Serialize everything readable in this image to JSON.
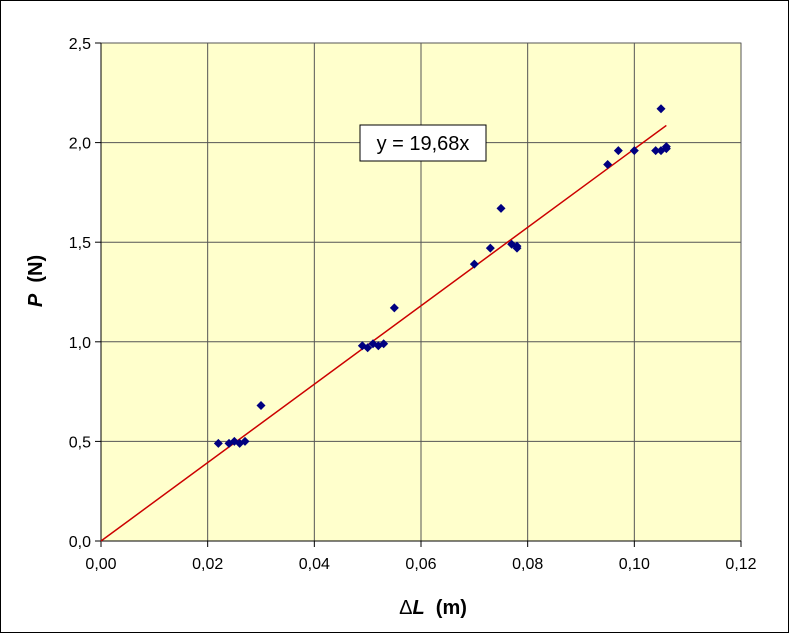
{
  "chart_data": {
    "type": "scatter",
    "xlabel": "ΔL  (m)",
    "xlabel_parts": {
      "delta": "Δ",
      "symbol": "L",
      "unit": "  (m)"
    },
    "ylabel": "P  (N)",
    "ylabel_parts": {
      "symbol": "P",
      "unit": "  (N)"
    },
    "xlim": [
      0,
      0.12
    ],
    "ylim": [
      0,
      2.5
    ],
    "x_ticks": [
      "0,00",
      "0,02",
      "0,04",
      "0,06",
      "0,08",
      "0,10",
      "0,12"
    ],
    "y_ticks": [
      "0,0",
      "0,5",
      "1,0",
      "1,5",
      "2,0",
      "2,5"
    ],
    "grid": true,
    "plot_background": "#ffffcc",
    "gridline_color": "#555555",
    "marker_color": "#000080",
    "trendline_color": "#cc0000",
    "trendline": {
      "label": "y = 19,68x",
      "slope": 19.68,
      "intercept": 0,
      "x_range": [
        0,
        0.106
      ]
    },
    "series": [
      {
        "x": [
          0.022,
          0.024,
          0.025,
          0.026,
          0.027,
          0.03,
          0.049,
          0.05,
          0.051,
          0.052,
          0.053,
          0.055,
          0.07,
          0.073,
          0.075,
          0.077,
          0.078,
          0.078,
          0.095,
          0.097,
          0.1,
          0.104,
          0.105,
          0.105,
          0.106,
          0.106
        ],
        "y": [
          0.49,
          0.49,
          0.5,
          0.49,
          0.5,
          0.68,
          0.98,
          0.97,
          0.99,
          0.98,
          0.99,
          1.17,
          1.39,
          1.47,
          1.67,
          1.49,
          1.48,
          1.47,
          1.89,
          1.96,
          1.96,
          1.96,
          2.17,
          1.96,
          1.97,
          1.98
        ]
      }
    ]
  }
}
